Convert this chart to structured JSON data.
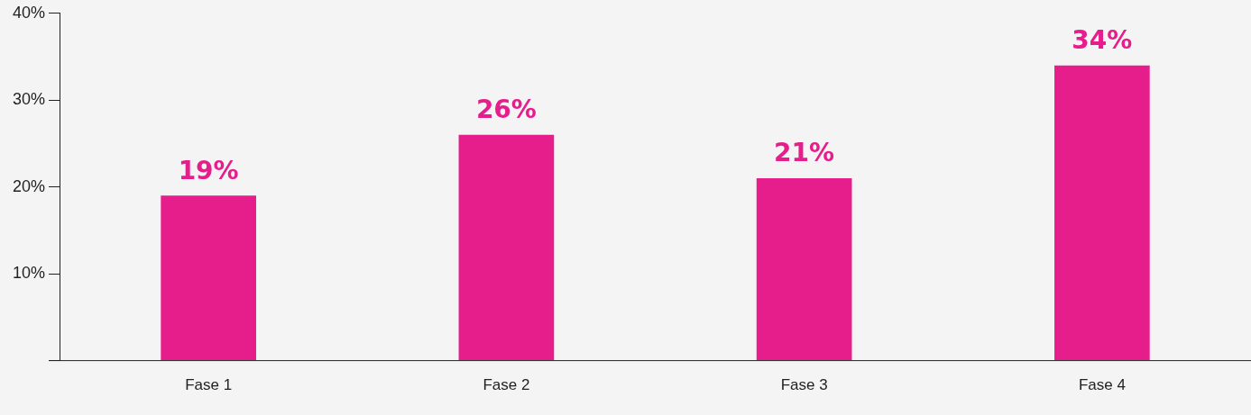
{
  "chart_data": {
    "type": "bar",
    "categories": [
      "Fase 1",
      "Fase 2",
      "Fase 3",
      "Fase 4"
    ],
    "values": [
      19,
      26,
      21,
      34
    ],
    "color": "#e61e8c",
    "value_labels": [
      "19%",
      "26%",
      "21%",
      "34%"
    ],
    "ylim": [
      0,
      40
    ],
    "yticks": [
      {
        "value": 0,
        "label": null
      },
      {
        "value": 10,
        "label": "10%"
      },
      {
        "value": 20,
        "label": "20%"
      },
      {
        "value": 30,
        "label": "30%"
      },
      {
        "value": 40,
        "label": "40%"
      }
    ],
    "grid": false,
    "legend": false
  }
}
